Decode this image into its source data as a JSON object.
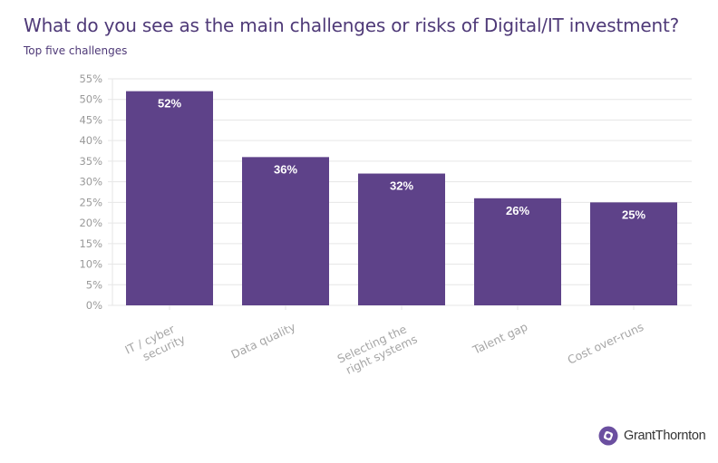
{
  "header": {
    "title": "What do you see as the main challenges or risks of Digital/IT investment?",
    "subtitle": "Top five challenges"
  },
  "branding": {
    "logo_icon": "grant-thornton-logo-icon",
    "logo_text": "GrantThornton",
    "logo_color": "#6b4fa0"
  },
  "colors": {
    "bar": "#5e4289",
    "title": "#4f3a78",
    "grid": "#e6e6e6",
    "axis_text": "#9a9a9a"
  },
  "chart_data": {
    "type": "bar",
    "title": "What do you see as the main challenges or risks of Digital/IT investment?",
    "subtitle": "Top five challenges",
    "categories": [
      [
        "IT / cyber",
        "security"
      ],
      [
        "Data quality"
      ],
      [
        "Selecting the",
        "right systems"
      ],
      [
        "Talent gap"
      ],
      [
        "Cost over-runs"
      ]
    ],
    "values": [
      52,
      36,
      32,
      26,
      25
    ],
    "value_labels": [
      "52%",
      "36%",
      "32%",
      "26%",
      "25%"
    ],
    "xlabel": "",
    "ylabel": "",
    "ylim": [
      0,
      55
    ],
    "yticks": [
      0,
      5,
      10,
      15,
      20,
      25,
      30,
      35,
      40,
      45,
      50,
      55
    ],
    "ytick_labels": [
      "0%",
      "5%",
      "10%",
      "15%",
      "20%",
      "25%",
      "30%",
      "35%",
      "40%",
      "45%",
      "50%",
      "55%"
    ],
    "grid": true,
    "legend": "none"
  }
}
